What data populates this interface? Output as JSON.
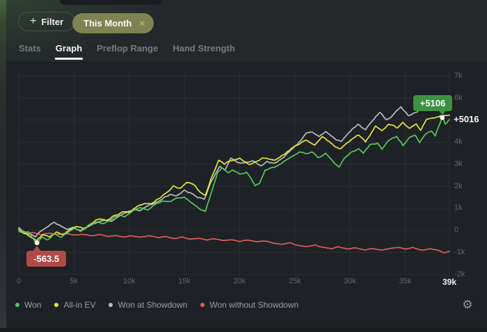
{
  "header": {
    "filter_button": {
      "plus": "+",
      "label": "Filter"
    },
    "chips": [
      {
        "label": "This Month",
        "close": "✕"
      }
    ]
  },
  "tabs": [
    {
      "label": "Stats",
      "active": false
    },
    {
      "label": "Graph",
      "active": true
    },
    {
      "label": "Preflop Range",
      "active": false
    },
    {
      "label": "Hand Strength",
      "active": false
    }
  ],
  "chart_data": {
    "type": "line",
    "x_unit": "hands",
    "xlim": [
      0,
      39000
    ],
    "ylim": [
      -2000,
      7000
    ],
    "grid": true,
    "legend_position": "bottom-left",
    "x_ticks": [
      {
        "h": 0,
        "label": "0"
      },
      {
        "h": 5,
        "label": "5k"
      },
      {
        "h": 10,
        "label": "10k"
      },
      {
        "h": 15,
        "label": "15k"
      },
      {
        "h": 20,
        "label": "20k"
      },
      {
        "h": 25,
        "label": "25k"
      },
      {
        "h": 30,
        "label": "30k"
      },
      {
        "h": 35,
        "label": "35k"
      },
      {
        "h": 39,
        "label": "39k",
        "bold": true
      }
    ],
    "y_ticks": [
      {
        "v": 7000,
        "label": "7k"
      },
      {
        "v": 6000,
        "label": "6k"
      },
      {
        "v": 4000,
        "label": "4k"
      },
      {
        "v": 3000,
        "label": "3k"
      },
      {
        "v": 2000,
        "label": "2k"
      },
      {
        "v": 1000,
        "label": "1k"
      },
      {
        "v": 0,
        "label": "0"
      },
      {
        "v": -1000,
        "label": "-1k"
      },
      {
        "v": -2000,
        "label": "-2k"
      }
    ],
    "series": [
      {
        "name": "Won",
        "color": "#57c95e",
        "points": [
          [
            0,
            80
          ],
          [
            0.4,
            -120
          ],
          [
            0.9,
            -60
          ],
          [
            1.3,
            -380
          ],
          [
            1.65,
            -563.5
          ],
          [
            2.1,
            -280
          ],
          [
            2.6,
            -430
          ],
          [
            3.2,
            -180
          ],
          [
            3.8,
            -310
          ],
          [
            4.5,
            -60
          ],
          [
            5,
            70
          ],
          [
            5.6,
            -30
          ],
          [
            6.3,
            230
          ],
          [
            7,
            410
          ],
          [
            7.7,
            330
          ],
          [
            8.4,
            560
          ],
          [
            9,
            700
          ],
          [
            9.6,
            620
          ],
          [
            10.3,
            900
          ],
          [
            11,
            1060
          ],
          [
            11.7,
            960
          ],
          [
            12.4,
            1210
          ],
          [
            13,
            1330
          ],
          [
            13.7,
            1280
          ],
          [
            14.3,
            1460
          ],
          [
            15,
            1500
          ],
          [
            15.6,
            1270
          ],
          [
            16.4,
            940
          ],
          [
            16.9,
            840
          ],
          [
            17.4,
            1620
          ],
          [
            18,
            2620
          ],
          [
            18.4,
            2840
          ],
          [
            19,
            2600
          ],
          [
            19.4,
            2720
          ],
          [
            20,
            2550
          ],
          [
            20.6,
            2660
          ],
          [
            21,
            2400
          ],
          [
            21.4,
            2030
          ],
          [
            21.8,
            2160
          ],
          [
            22.3,
            2720
          ],
          [
            23.2,
            2880
          ],
          [
            24,
            3110
          ],
          [
            24.7,
            3310
          ],
          [
            25.4,
            3530
          ],
          [
            26,
            3480
          ],
          [
            26.6,
            3570
          ],
          [
            27.1,
            3300
          ],
          [
            27.8,
            3510
          ],
          [
            28.4,
            3150
          ],
          [
            29,
            2890
          ],
          [
            29.5,
            3310
          ],
          [
            30.2,
            3570
          ],
          [
            30.8,
            3720
          ],
          [
            31.2,
            3500
          ],
          [
            31.8,
            3880
          ],
          [
            32.5,
            3980
          ],
          [
            32.9,
            3670
          ],
          [
            33.5,
            4090
          ],
          [
            34.2,
            4240
          ],
          [
            34.8,
            3830
          ],
          [
            35.4,
            4200
          ],
          [
            35.9,
            4300
          ],
          [
            36.3,
            3980
          ],
          [
            36.9,
            4400
          ],
          [
            37.4,
            4510
          ],
          [
            37.7,
            4300
          ],
          [
            38.05,
            4770
          ],
          [
            38.35,
            5106
          ],
          [
            38.6,
            4850
          ],
          [
            39,
            5016
          ]
        ]
      },
      {
        "name": "All-in EV",
        "color": "#e8e53b",
        "points": [
          [
            0,
            30
          ],
          [
            0.5,
            -120
          ],
          [
            1,
            -260
          ],
          [
            1.6,
            -430
          ],
          [
            2.2,
            -200
          ],
          [
            2.8,
            -330
          ],
          [
            3.4,
            -100
          ],
          [
            4,
            -210
          ],
          [
            4.6,
            20
          ],
          [
            5.2,
            150
          ],
          [
            6,
            80
          ],
          [
            6.6,
            350
          ],
          [
            7.3,
            550
          ],
          [
            8,
            480
          ],
          [
            8.7,
            700
          ],
          [
            9.4,
            850
          ],
          [
            10,
            800
          ],
          [
            10.7,
            1050
          ],
          [
            11.4,
            1250
          ],
          [
            12,
            1200
          ],
          [
            12.7,
            1450
          ],
          [
            13.4,
            1700
          ],
          [
            14,
            2040
          ],
          [
            14.6,
            1900
          ],
          [
            15.2,
            2150
          ],
          [
            15.8,
            2100
          ],
          [
            16.4,
            1750
          ],
          [
            16.9,
            1600
          ],
          [
            17.4,
            2350
          ],
          [
            18.1,
            3200
          ],
          [
            18.6,
            3000
          ],
          [
            19.2,
            3150
          ],
          [
            20,
            3260
          ],
          [
            20.9,
            2980
          ],
          [
            21.5,
            3100
          ],
          [
            22.1,
            3290
          ],
          [
            23.2,
            3200
          ],
          [
            24,
            3450
          ],
          [
            24.7,
            3700
          ],
          [
            25.3,
            3900
          ],
          [
            26,
            4100
          ],
          [
            26.8,
            3830
          ],
          [
            27.5,
            4250
          ],
          [
            28.5,
            3870
          ],
          [
            29.1,
            3700
          ],
          [
            30.2,
            4150
          ],
          [
            30.8,
            4330
          ],
          [
            31.4,
            4010
          ],
          [
            32.3,
            4700
          ],
          [
            32.9,
            4520
          ],
          [
            33.5,
            4800
          ],
          [
            34.3,
            4640
          ],
          [
            34.8,
            4870
          ],
          [
            35.4,
            4600
          ],
          [
            36,
            4800
          ],
          [
            36.4,
            4540
          ],
          [
            36.9,
            5000
          ],
          [
            37.4,
            5100
          ],
          [
            38.2,
            5180
          ],
          [
            39,
            5220
          ]
        ]
      },
      {
        "name": "Won at Showdown",
        "color": "#b9bdbf",
        "points": [
          [
            0,
            120
          ],
          [
            0.5,
            -60
          ],
          [
            1,
            -180
          ],
          [
            1.5,
            -300
          ],
          [
            2,
            -60
          ],
          [
            2.6,
            190
          ],
          [
            3.2,
            380
          ],
          [
            3.8,
            200
          ],
          [
            4.4,
            60
          ],
          [
            5,
            140
          ],
          [
            5.6,
            -20
          ],
          [
            6.2,
            160
          ],
          [
            7,
            340
          ],
          [
            7.7,
            480
          ],
          [
            8.4,
            420
          ],
          [
            9,
            640
          ],
          [
            9.7,
            800
          ],
          [
            10.4,
            950
          ],
          [
            11,
            900
          ],
          [
            11.7,
            1100
          ],
          [
            12.4,
            1250
          ],
          [
            13,
            1400
          ],
          [
            13.7,
            1630
          ],
          [
            14.4,
            1570
          ],
          [
            15,
            1800
          ],
          [
            15.6,
            1700
          ],
          [
            16.2,
            1500
          ],
          [
            16.8,
            1400
          ],
          [
            17.4,
            2150
          ],
          [
            18.2,
            2900
          ],
          [
            18.7,
            2750
          ],
          [
            19.2,
            3290
          ],
          [
            19.8,
            3100
          ],
          [
            20.5,
            3040
          ],
          [
            21.2,
            3120
          ],
          [
            21.9,
            2950
          ],
          [
            22.5,
            3150
          ],
          [
            23.2,
            3040
          ],
          [
            24,
            3300
          ],
          [
            24.8,
            3700
          ],
          [
            25.5,
            4050
          ],
          [
            26,
            4400
          ],
          [
            26.6,
            4470
          ],
          [
            27.2,
            4260
          ],
          [
            27.8,
            4530
          ],
          [
            28.7,
            4110
          ],
          [
            29.2,
            4010
          ],
          [
            29.9,
            4410
          ],
          [
            30.7,
            4780
          ],
          [
            31.4,
            4560
          ],
          [
            32.3,
            5140
          ],
          [
            32.7,
            5390
          ],
          [
            33.3,
            5020
          ],
          [
            34,
            5290
          ],
          [
            34.6,
            5560
          ],
          [
            35.3,
            5170
          ],
          [
            35.9,
            5330
          ],
          [
            36.5,
            5450
          ],
          [
            37.2,
            5600
          ],
          [
            38,
            5680
          ],
          [
            38.6,
            5500
          ],
          [
            39,
            5560
          ]
        ]
      },
      {
        "name": "Won without Showdown",
        "color": "#dd5c55",
        "points": [
          [
            0,
            -40
          ],
          [
            0.7,
            -150
          ],
          [
            1.3,
            -90
          ],
          [
            2,
            -220
          ],
          [
            2.7,
            -130
          ],
          [
            3.4,
            -200
          ],
          [
            4.2,
            -140
          ],
          [
            5,
            -210
          ],
          [
            5.8,
            -160
          ],
          [
            6.5,
            -230
          ],
          [
            7.3,
            -190
          ],
          [
            8,
            -260
          ],
          [
            8.8,
            -220
          ],
          [
            9.5,
            -290
          ],
          [
            10.3,
            -240
          ],
          [
            11,
            -310
          ],
          [
            11.8,
            -270
          ],
          [
            12.5,
            -340
          ],
          [
            13.3,
            -290
          ],
          [
            14,
            -360
          ],
          [
            14.8,
            -320
          ],
          [
            15.5,
            -400
          ],
          [
            16.3,
            -350
          ],
          [
            17,
            -430
          ],
          [
            17.8,
            -380
          ],
          [
            18.5,
            -460
          ],
          [
            19.3,
            -410
          ],
          [
            20,
            -490
          ],
          [
            20.8,
            -440
          ],
          [
            21.5,
            -530
          ],
          [
            22.3,
            -480
          ],
          [
            23,
            -570
          ],
          [
            23.8,
            -620
          ],
          [
            24.5,
            -560
          ],
          [
            25.3,
            -680
          ],
          [
            26,
            -730
          ],
          [
            26.8,
            -660
          ],
          [
            27.5,
            -760
          ],
          [
            28.3,
            -820
          ],
          [
            29,
            -740
          ],
          [
            29.8,
            -860
          ],
          [
            30.5,
            -790
          ],
          [
            31.3,
            -880
          ],
          [
            32,
            -820
          ],
          [
            32.8,
            -900
          ],
          [
            33.5,
            -830
          ],
          [
            34.3,
            -760
          ],
          [
            35,
            -850
          ],
          [
            35.7,
            -780
          ],
          [
            36.5,
            -880
          ],
          [
            37.2,
            -810
          ],
          [
            38,
            -900
          ],
          [
            38.5,
            -1020
          ],
          [
            39,
            -960
          ]
        ]
      }
    ],
    "annotations": {
      "max": {
        "series": "Won",
        "h": 38.35,
        "value": 5106,
        "label": "+5106",
        "color": "#3c9142"
      },
      "min": {
        "series": "Won",
        "h": 1.65,
        "value": -563.5,
        "label": "-563.5",
        "color": "#b04a47"
      },
      "final": {
        "series": "Won",
        "h": 39,
        "value": 5016,
        "label": "+5016"
      }
    }
  },
  "footer": {
    "settings_icon": "⚙"
  },
  "colors": {
    "background": "#23272a",
    "chart_background": "#1e2226",
    "gridline": "#2a2e32",
    "tick_text": "#60666b",
    "chip_background": "#7e8351"
  }
}
